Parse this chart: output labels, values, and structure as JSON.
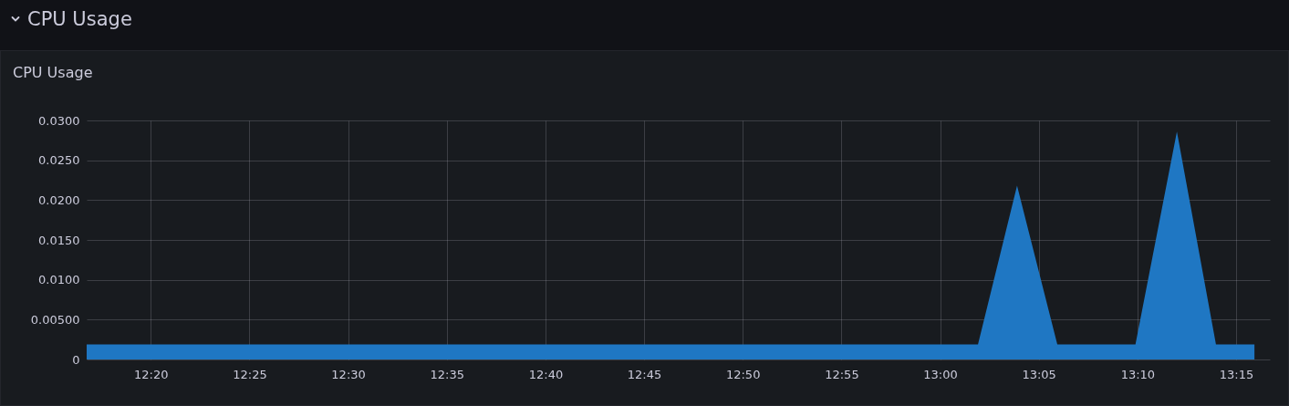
{
  "chart_data": {
    "type": "area",
    "title": "CPU Usage",
    "subtitle": "CPU Usage",
    "x": [
      12.2792,
      12.5,
      12.75,
      12.95,
      13.032,
      13.065,
      13.099,
      13.165,
      13.2,
      13.233,
      13.2655
    ],
    "series": [
      {
        "color": "#1f77c3",
        "values": [
          0.0019,
          0.0019,
          0.0019,
          0.0019,
          0.0019,
          0.0218,
          0.0019,
          0.0019,
          0.0286,
          0.0019,
          0.0019
        ]
      }
    ],
    "xlim": [
      12.2792,
      13.2785
    ],
    "xticks": [
      {
        "value": 12.3333,
        "label": "12:20"
      },
      {
        "value": 12.4167,
        "label": "12:25"
      },
      {
        "value": 12.5,
        "label": "12:30"
      },
      {
        "value": 12.5833,
        "label": "12:35"
      },
      {
        "value": 12.6667,
        "label": "12:40"
      },
      {
        "value": 12.75,
        "label": "12:45"
      },
      {
        "value": 12.8333,
        "label": "12:50"
      },
      {
        "value": 12.9167,
        "label": "12:55"
      },
      {
        "value": 13.0,
        "label": "13:00"
      },
      {
        "value": 13.0833,
        "label": "13:05"
      },
      {
        "value": 13.1667,
        "label": "13:10"
      },
      {
        "value": 13.25,
        "label": "13:15"
      }
    ],
    "ylim": [
      0,
      0.03
    ],
    "yticks": [
      0,
      {
        "value": 0.005,
        "label": "0.00500"
      },
      {
        "value": 0.01,
        "label": "0.0100"
      },
      {
        "value": 0.015,
        "label": "0.0150"
      },
      {
        "value": 0.02,
        "label": "0.0200"
      },
      {
        "value": 0.025,
        "label": "0.0250"
      },
      {
        "value": 0.03,
        "label": "0.0300"
      }
    ],
    "grid": true
  }
}
